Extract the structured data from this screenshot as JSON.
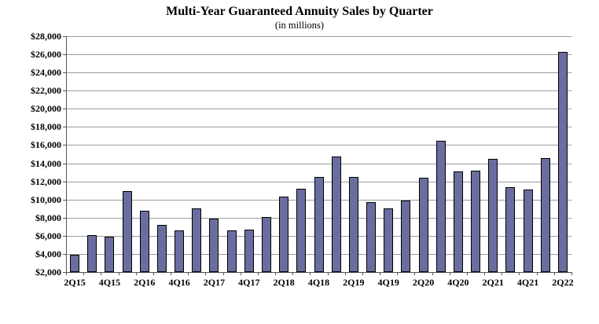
{
  "title": "Multi-Year Guaranteed Annuity Sales by Quarter",
  "subtitle": "(in millions)",
  "chart_data": {
    "type": "bar",
    "title": "Multi-Year Guaranteed Annuity Sales by Quarter",
    "subtitle": "(in millions)",
    "categories": [
      "2Q15",
      "3Q15",
      "4Q15",
      "1Q16",
      "2Q16",
      "3Q16",
      "4Q16",
      "1Q17",
      "2Q17",
      "3Q17",
      "4Q17",
      "1Q18",
      "2Q18",
      "3Q18",
      "4Q18",
      "1Q19",
      "2Q19",
      "3Q19",
      "4Q19",
      "1Q20",
      "2Q20",
      "3Q20",
      "4Q20",
      "1Q21",
      "2Q21",
      "3Q21",
      "4Q21",
      "1Q22",
      "2Q22"
    ],
    "values": [
      3900,
      6100,
      5900,
      10900,
      8800,
      7200,
      6600,
      9000,
      7900,
      6600,
      6700,
      8100,
      10300,
      11200,
      12500,
      14700,
      12500,
      9700,
      9000,
      9900,
      12400,
      16500,
      13100,
      13200,
      14500,
      11400,
      11100,
      14600,
      26300
    ],
    "x_axis_labels_shown": [
      "2Q15",
      "4Q15",
      "2Q16",
      "4Q16",
      "2Q17",
      "4Q17",
      "2Q18",
      "4Q18",
      "2Q19",
      "4Q19",
      "2Q20",
      "4Q20",
      "2Q21",
      "4Q21",
      "2Q22"
    ],
    "x_label_every": 2,
    "y_ticks": [
      "$28,000",
      "$26,000",
      "$24,000",
      "$22,000",
      "$20,000",
      "$18,000",
      "$16,000",
      "$14,000",
      "$12,000",
      "$10,000",
      "$8,000",
      "$6,000",
      "$4,000",
      "$2,000"
    ],
    "ylim": [
      2000,
      28000
    ],
    "y_step": 2000,
    "grid": true,
    "legend": false,
    "bar_color": "#6a6d9e",
    "bar_border_color": "#000000",
    "gridline_color": "#9c9c9c",
    "axis_color": "#555555",
    "text_color": "#000000"
  }
}
